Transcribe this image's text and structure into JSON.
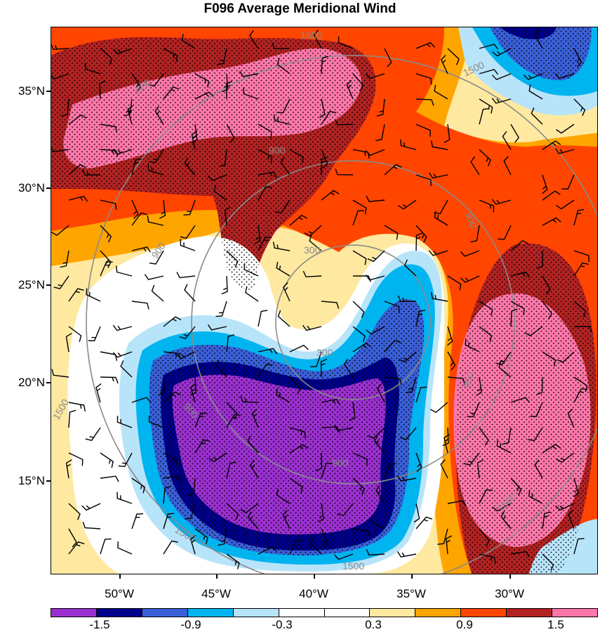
{
  "title": "F096 Average Meridional Wind",
  "lat_labels": [
    "35°N",
    "30°N",
    "25°N",
    "20°N",
    "15°N"
  ],
  "lon_labels": [
    "50°W",
    "45°W",
    "40°W",
    "35°W",
    "30°W"
  ],
  "colorbar": {
    "colors": [
      "#9b30d0",
      "#00008b",
      "#3a5fd8",
      "#00b4f0",
      "#b8e4fa",
      "#ffffff",
      "#ffffff",
      "#ffe9a0",
      "#ffa500",
      "#ff4500",
      "#b22222",
      "#ff77aa"
    ],
    "labels": [
      "-1.5",
      "-0.9",
      "-0.3",
      "0.3",
      "0.9",
      "1.5"
    ]
  },
  "contour_labels": [
    "1500",
    "1500",
    "1500",
    "1500",
    "1500",
    "1500",
    "900",
    "900",
    "900",
    "900",
    "900",
    "900",
    "900",
    "300",
    "300"
  ]
}
